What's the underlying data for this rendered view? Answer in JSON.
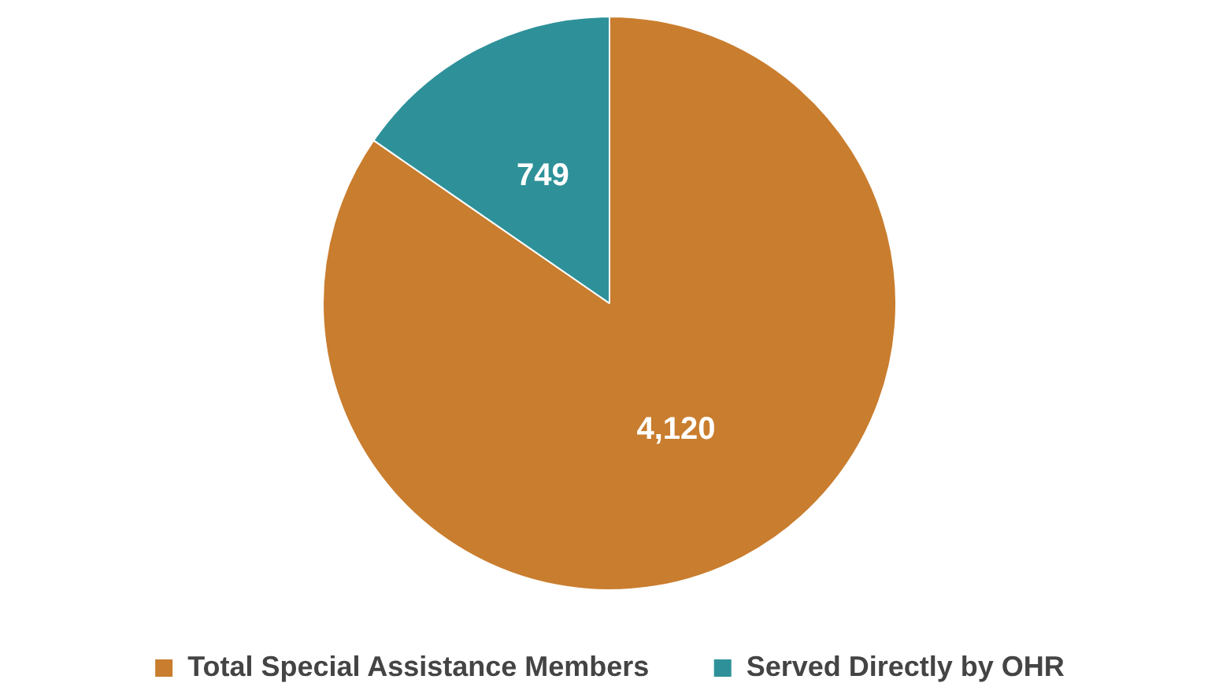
{
  "chart_data": {
    "type": "pie",
    "categories": [
      "Total Special Assistance Members",
      "Served Directly by OHR"
    ],
    "values": [
      4120,
      749
    ],
    "value_labels": [
      "4,120",
      "749"
    ],
    "colors": [
      "#c97d2e",
      "#2e9199"
    ],
    "legend": "bottom"
  }
}
